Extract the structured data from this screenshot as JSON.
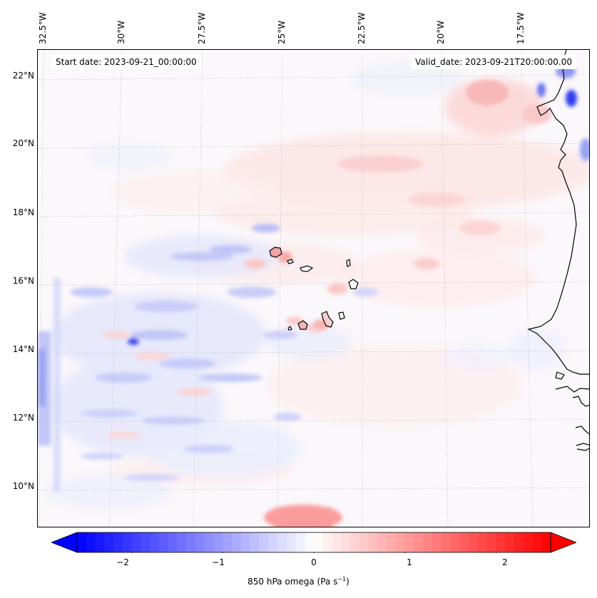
{
  "map": {
    "start_date": "Start date: 2023-09-21_00:00:00",
    "valid_date": "Valid_date: 2023-09-21T20:00:00.00",
    "lon_labels": [
      "32.5°W",
      "30°W",
      "27.5°W",
      "25°W",
      "22.5°W",
      "20°W",
      "17.5°W"
    ],
    "lat_labels": [
      "22°N",
      "20°N",
      "18°N",
      "16°N",
      "14°N",
      "12°N",
      "10°N"
    ]
  },
  "colorbar": {
    "ticks": [
      "−2",
      "−1",
      "0",
      "1",
      "2"
    ],
    "label_prefix": "850 hPa omega (Pa s",
    "label_exp": "−1",
    "label_suffix": ")",
    "min": -2.6,
    "max": 2.6,
    "color_neg": "#0000ff",
    "color_zero": "#ffffff",
    "color_pos": "#ff0000"
  }
}
